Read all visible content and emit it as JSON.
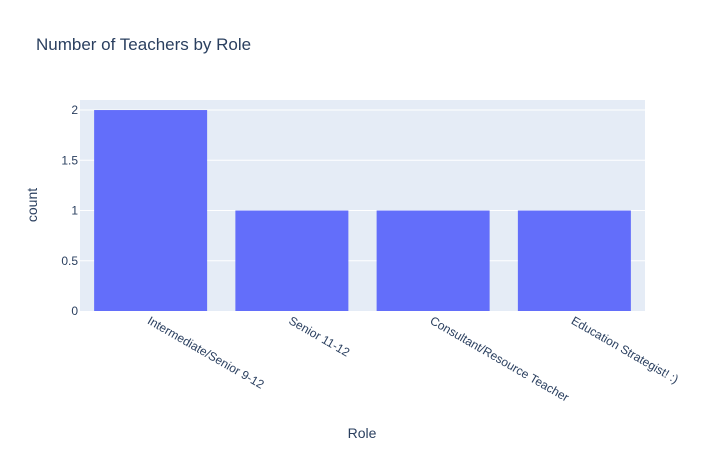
{
  "chart_data": {
    "type": "bar",
    "title": "Number of Teachers by Role",
    "xlabel": "Role",
    "ylabel": "count",
    "categories": [
      "Intermediate/Senior 9-12",
      "Senior 11-12",
      "Consultant/Resource Teacher",
      "Education Strategist! :)"
    ],
    "values": [
      2,
      1,
      1,
      1
    ],
    "ylim": [
      0,
      2.1
    ],
    "yticks": [
      0,
      0.5,
      1,
      1.5,
      2
    ],
    "ytick_labels": [
      "0",
      "0.5",
      "1",
      "1.5",
      "2"
    ],
    "grid": true,
    "colors": {
      "bar": "#636efa",
      "plot_background": "#e5ecf6",
      "grid": "#ffffff",
      "text": "#2a3f5f"
    }
  }
}
